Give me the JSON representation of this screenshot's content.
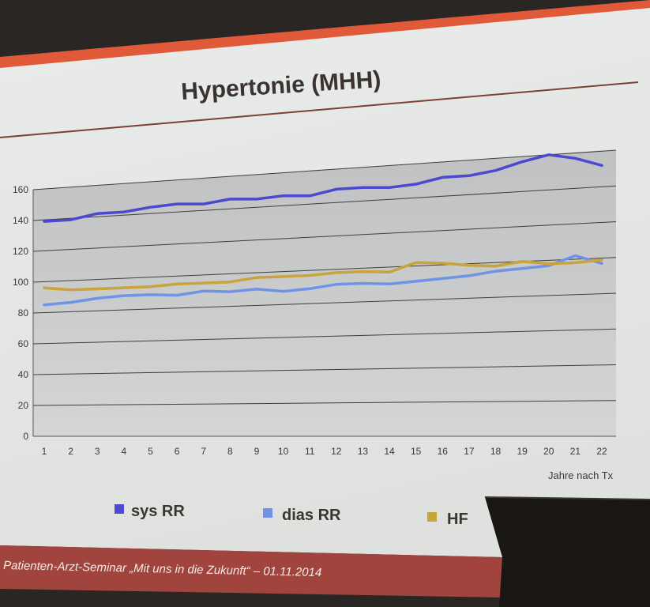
{
  "slide": {
    "title": "Hypertonie (MHH)",
    "footer": "Patienten-Arzt-Seminar „Mit uns in die Zukunft“ – 01.11.2014"
  },
  "colors": {
    "sys": "#4a49cf",
    "dias": "#6f93e6",
    "hf": "#c9a43b",
    "plot_bg": "#c9cbcb",
    "accent": "#e05a3a"
  },
  "chart_data": {
    "type": "line",
    "title": "Hypertonie (MHH)",
    "xlabel": "Jahre nach Tx",
    "ylabel": "",
    "x": [
      1,
      2,
      3,
      4,
      5,
      6,
      7,
      8,
      9,
      10,
      11,
      12,
      13,
      14,
      15,
      16,
      17,
      18,
      19,
      20,
      21,
      22
    ],
    "ylim": [
      0,
      160
    ],
    "yticks": [
      0,
      20,
      40,
      60,
      80,
      100,
      120,
      140,
      160
    ],
    "grid": true,
    "legend_position": "bottom",
    "series": [
      {
        "name": "sys RR",
        "color": "#4a49cf",
        "values": [
          139,
          139,
          142,
          142,
          144,
          145,
          144,
          146,
          145,
          146,
          145,
          148,
          148,
          147,
          148,
          151,
          151,
          153,
          157,
          160,
          157,
          152
        ]
      },
      {
        "name": "dias RR",
        "color": "#6f93e6",
        "values": [
          85,
          86,
          88,
          89,
          89,
          88,
          90,
          89,
          90,
          88,
          89,
          91,
          91,
          90,
          91,
          92,
          93,
          95,
          96,
          97,
          102,
          97
        ]
      },
      {
        "name": "HF",
        "color": "#c9a43b",
        "values": [
          96,
          94,
          94,
          94,
          94,
          95,
          95,
          95,
          97,
          97,
          97,
          98,
          98,
          97,
          102,
          101,
          99,
          98,
          100,
          98,
          98,
          99
        ]
      }
    ]
  }
}
